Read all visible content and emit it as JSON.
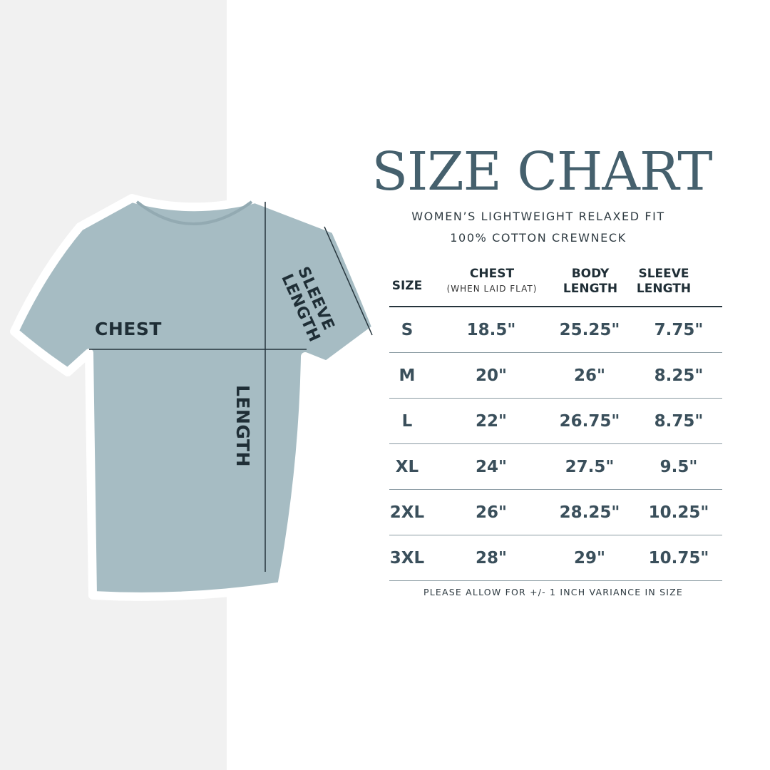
{
  "colors": {
    "panel": "#f1f1f1",
    "shirt": "#a6bcc3",
    "title": "#45606d",
    "text": "#3a4f5b"
  },
  "diagram": {
    "chest_label": "CHEST",
    "length_label": "LENGTH",
    "sleeve_label_line1": "SLEEVE",
    "sleeve_label_line2": "LENGTH"
  },
  "title": "SIZE CHART",
  "subtitle_line1": "WOMEN’S LIGHTWEIGHT RELAXED FIT",
  "subtitle_line2": "100% COTTON CREWNECK",
  "table": {
    "headers": {
      "size": "SIZE",
      "chest": "CHEST",
      "chest_note": "(WHEN LAID FLAT)",
      "body_1": "BODY",
      "body_2": "LENGTH",
      "sleeve_1": "SLEEVE",
      "sleeve_2": "LENGTH"
    },
    "rows": [
      {
        "size": "S",
        "chest": "18.5\"",
        "body": "25.25\"",
        "sleeve": "7.75\""
      },
      {
        "size": "M",
        "chest": "20\"",
        "body": "26\"",
        "sleeve": "8.25\""
      },
      {
        "size": "L",
        "chest": "22\"",
        "body": "26.75\"",
        "sleeve": "8.75\""
      },
      {
        "size": "XL",
        "chest": "24\"",
        "body": "27.5\"",
        "sleeve": "9.5\""
      },
      {
        "size": "2XL",
        "chest": "26\"",
        "body": "28.25\"",
        "sleeve": "10.25\""
      },
      {
        "size": "3XL",
        "chest": "28\"",
        "body": "29\"",
        "sleeve": "10.75\""
      }
    ]
  },
  "note": "PLEASE ALLOW FOR +/- 1 INCH VARIANCE IN SIZE"
}
